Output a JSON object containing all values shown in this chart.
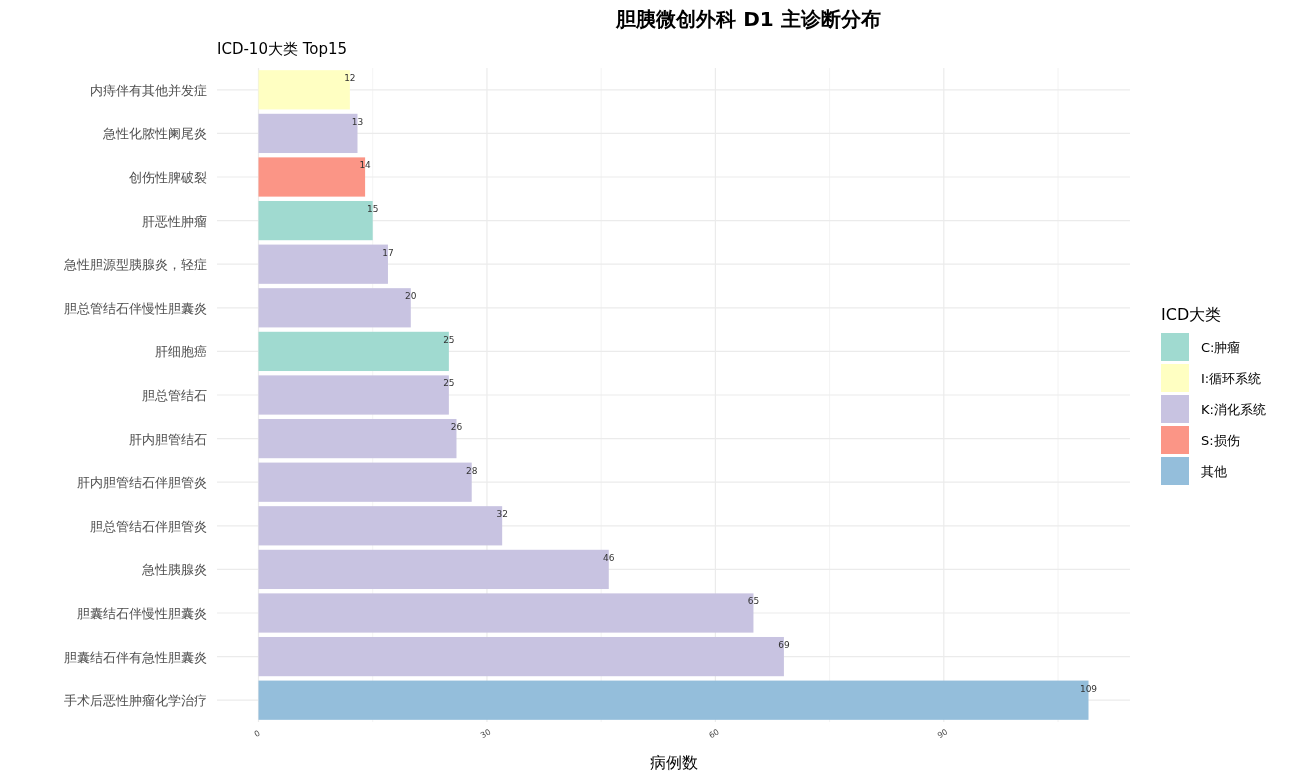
{
  "chart_data": {
    "type": "bar",
    "orientation": "horizontal",
    "title": "胆胰微创外科 D1 主诊断分布",
    "subtitle": "ICD-10大类  Top15",
    "xlabel": "病例数",
    "legend_title": "ICD大类",
    "categories": [
      "内痔伴有其他并发症",
      "急性化脓性阑尾炎",
      "创伤性脾破裂",
      "肝恶性肿瘤",
      "急性胆源型胰腺炎，轻症",
      "胆总管结石伴慢性胆囊炎",
      "肝细胞癌",
      "胆总管结石",
      "肝内胆管结石",
      "肝内胆管结石伴胆管炎",
      "胆总管结石伴胆管炎",
      "急性胰腺炎",
      "胆囊结石伴慢性胆囊炎",
      "胆囊结石伴有急性胆囊炎",
      "手术后恶性肿瘤化学治疗"
    ],
    "series": [
      {
        "name": "C:肿瘤",
        "color": "#a0dad0",
        "values": [
          null,
          null,
          null,
          15,
          null,
          null,
          25,
          null,
          null,
          null,
          null,
          null,
          null,
          null,
          null
        ]
      },
      {
        "name": "I:循环系统",
        "color": "#ffffc2",
        "values": [
          12,
          null,
          null,
          null,
          null,
          null,
          null,
          null,
          null,
          null,
          null,
          null,
          null,
          null,
          null
        ]
      },
      {
        "name": "K:消化系统",
        "color": "#c8c3e1",
        "values": [
          null,
          13,
          null,
          null,
          17,
          20,
          null,
          25,
          26,
          28,
          32,
          46,
          65,
          69,
          null
        ]
      },
      {
        "name": "S:损伤",
        "color": "#fb9586",
        "values": [
          null,
          null,
          14,
          null,
          null,
          null,
          null,
          null,
          null,
          null,
          null,
          null,
          null,
          null,
          null
        ]
      },
      {
        "name": "其他",
        "color": "#94bedb",
        "values": [
          null,
          null,
          null,
          null,
          null,
          null,
          null,
          null,
          null,
          null,
          null,
          null,
          null,
          null,
          109
        ]
      }
    ],
    "xlim": [
      -5.45,
      114.45
    ],
    "xticks": [
      0,
      {
        "value": 15,
        "label": null
      },
      30,
      {
        "value": 45,
        "label": null
      },
      60,
      {
        "value": 75,
        "label": null
      },
      90,
      {
        "value": 105,
        "label": null
      }
    ],
    "data_labels": true,
    "grid": true,
    "legend": "right"
  }
}
